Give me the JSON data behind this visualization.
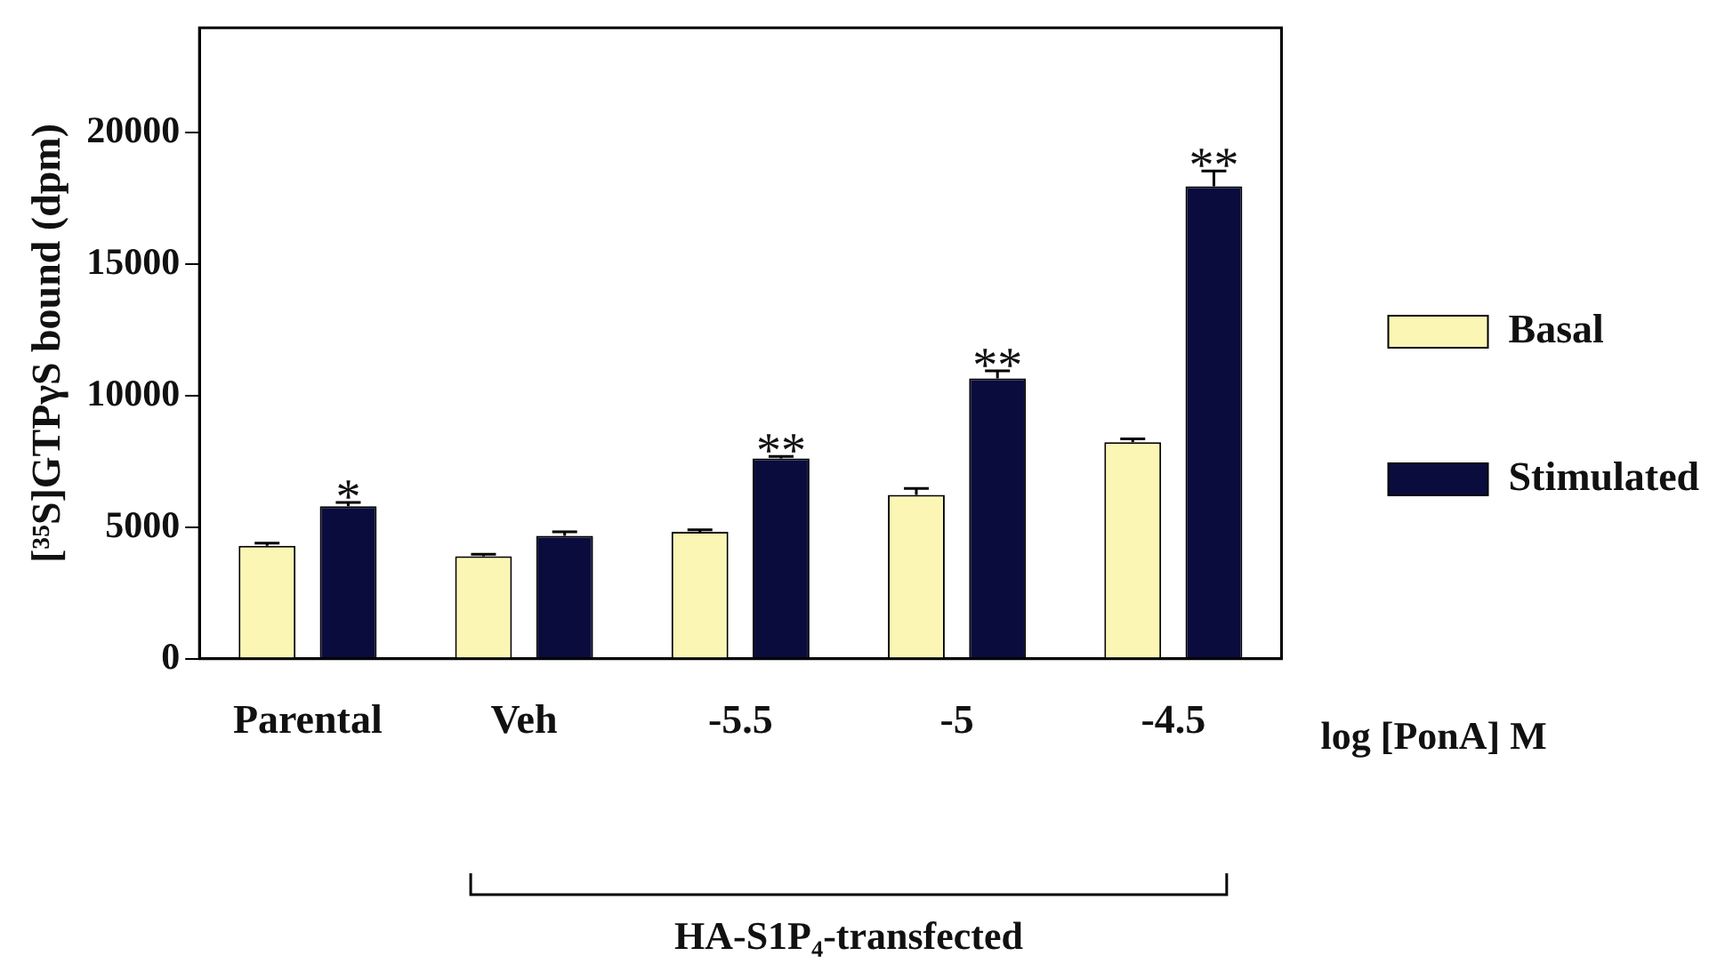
{
  "chart_data": {
    "type": "bar",
    "ylabel": "[³⁵S]GTPγS bound (dpm)",
    "xlabel": "log [PonA] M",
    "categories": [
      "Parental",
      "Veh",
      "-5.5",
      "-5",
      "-4.5"
    ],
    "series": [
      {
        "name": "Basal",
        "color": "#fcf6b4",
        "values": [
          4300,
          3900,
          4830,
          6230,
          8240
        ],
        "errors": [
          100,
          80,
          80,
          250,
          120
        ]
      },
      {
        "name": "Stimulated",
        "color": "#0a0c3e",
        "values": [
          5800,
          4680,
          7620,
          10660,
          17970
        ],
        "errors": [
          150,
          150,
          80,
          290,
          580
        ],
        "value_labels": [
          "*",
          null,
          "**",
          "**",
          "**"
        ]
      }
    ],
    "ylim": [
      0,
      24000
    ],
    "yticks": [
      0,
      5000,
      10000,
      15000,
      20000
    ],
    "grid": false,
    "legend": "right",
    "annotations": [
      "HA-S1P₄-transfected"
    ]
  }
}
